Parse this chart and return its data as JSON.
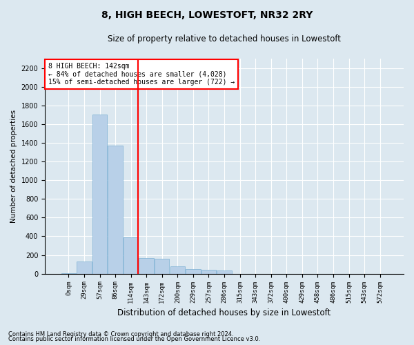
{
  "title": "8, HIGH BEECH, LOWESTOFT, NR32 2RY",
  "subtitle": "Size of property relative to detached houses in Lowestoft",
  "xlabel": "Distribution of detached houses by size in Lowestoft",
  "ylabel": "Number of detached properties",
  "bar_color": "#b8d0e8",
  "bar_edge_color": "#7aafd4",
  "background_color": "#dce8f0",
  "fig_background_color": "#dce8f0",
  "grid_color": "#ffffff",
  "bin_labels": [
    "0sqm",
    "29sqm",
    "57sqm",
    "86sqm",
    "114sqm",
    "143sqm",
    "172sqm",
    "200sqm",
    "229sqm",
    "257sqm",
    "286sqm",
    "315sqm",
    "343sqm",
    "372sqm",
    "400sqm",
    "429sqm",
    "458sqm",
    "486sqm",
    "515sqm",
    "543sqm",
    "572sqm"
  ],
  "bar_values": [
    5,
    130,
    1700,
    1370,
    390,
    170,
    160,
    80,
    50,
    40,
    35,
    0,
    0,
    0,
    0,
    0,
    0,
    0,
    0,
    0,
    0
  ],
  "annotation_line1": "8 HIGH BEECH: 142sqm",
  "annotation_line2": "← 84% of detached houses are smaller (4,028)",
  "annotation_line3": "15% of semi-detached houses are larger (722) →",
  "vline_position": 4.48,
  "ylim": [
    0,
    2300
  ],
  "yticks": [
    0,
    200,
    400,
    600,
    800,
    1000,
    1200,
    1400,
    1600,
    1800,
    2000,
    2200
  ],
  "footnote1": "Contains HM Land Registry data © Crown copyright and database right 2024.",
  "footnote2": "Contains public sector information licensed under the Open Government Licence v3.0."
}
